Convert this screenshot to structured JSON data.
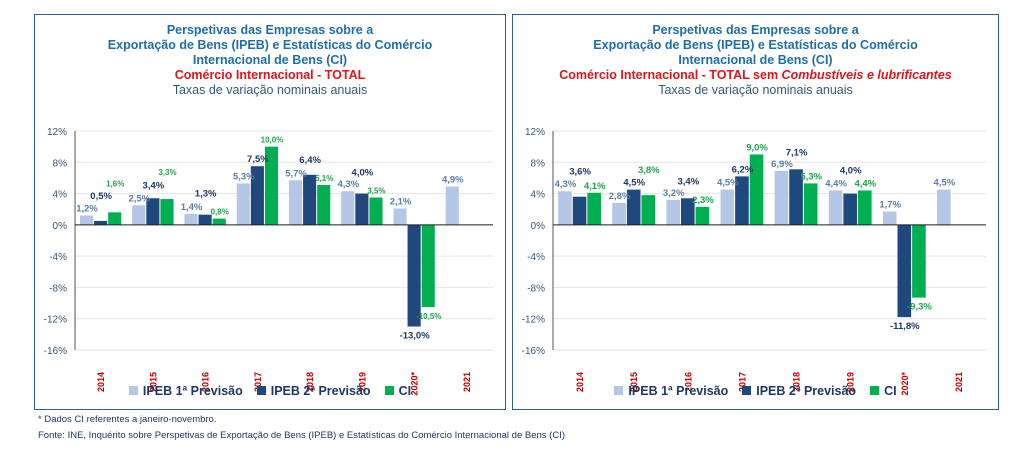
{
  "colors": {
    "ipeb1": "#b4c7e7",
    "ipeb2": "#1f497d",
    "ci": "#00b050",
    "ipeb1_label": "#5b7fa8",
    "ipeb2_label": "#1f3864",
    "ci_label": "#22a24a",
    "year": "#c00000"
  },
  "legend": [
    "IPEB 1ª Previsão",
    "IPEB 2ª Previsão",
    "CI"
  ],
  "footnotes": [
    "* Dados CI referentes a janeiro-novembro.",
    "Fonte: INE, Inquérito sobre Perspetivas de Exportação de Bens (IPEB) e Estatísticas do Comércio Internacional de Bens (CI)"
  ],
  "chart_data": [
    {
      "type": "bar",
      "title_lines": [
        "Perspetivas das Empresas sobre a",
        "Exportação de Bens (IPEB) e Estatísticas do Comércio",
        "Internacional de Bens (CI)"
      ],
      "subtitle": "Comércio Internacional - TOTAL",
      "subtitle_italic": "",
      "note": "Taxas de variação nominais anuais",
      "categories": [
        "2014",
        "2015",
        "2016",
        "2017",
        "2018",
        "2019",
        "2020*",
        "2021"
      ],
      "yticks": [
        "12%",
        "8%",
        "4%",
        "0%",
        "-4%",
        "-8%",
        "-12%",
        "-16%"
      ],
      "ylim": [
        -16,
        12
      ],
      "series": [
        {
          "name": "IPEB 1ª Previsão",
          "values": [
            1.2,
            2.5,
            1.4,
            5.3,
            5.7,
            4.3,
            2.1,
            4.9
          ]
        },
        {
          "name": "IPEB 2ª Previsão",
          "values": [
            0.5,
            3.4,
            1.3,
            7.5,
            6.4,
            4.0,
            -13.0,
            null
          ]
        },
        {
          "name": "CI",
          "values": [
            1.6,
            3.3,
            0.8,
            10.0,
            5.1,
            3.5,
            -10.5,
            null
          ]
        }
      ]
    },
    {
      "type": "bar",
      "title_lines": [
        "Perspetivas das Empresas sobre a",
        "Exportação de Bens  (IPEB) e Estatísticas do Comércio",
        "Internacional de Bens (CI)"
      ],
      "subtitle": "Comércio Internacional - TOTAL sem ",
      "subtitle_italic": "Combustíveis e lubrificantes",
      "note": "Taxas de variação nominais  anuais",
      "categories": [
        "2014",
        "2015",
        "2016",
        "2017",
        "2018",
        "2019",
        "2020*",
        "2021"
      ],
      "yticks": [
        "12%",
        "8%",
        "4%",
        "0%",
        "-4%",
        "-8%",
        "-12%",
        "-16%"
      ],
      "ylim": [
        -16,
        12
      ],
      "series": [
        {
          "name": "IPEB 1ª Previsão",
          "values": [
            4.3,
            2.8,
            3.2,
            4.5,
            6.9,
            4.4,
            1.7,
            4.5
          ]
        },
        {
          "name": "IPEB 2ª Previsão",
          "values": [
            3.6,
            4.5,
            3.4,
            6.2,
            7.1,
            4.0,
            -11.8,
            null
          ]
        },
        {
          "name": "CI",
          "values": [
            4.1,
            3.8,
            2.3,
            9.0,
            5.3,
            4.4,
            -9.3,
            null
          ]
        }
      ]
    }
  ]
}
